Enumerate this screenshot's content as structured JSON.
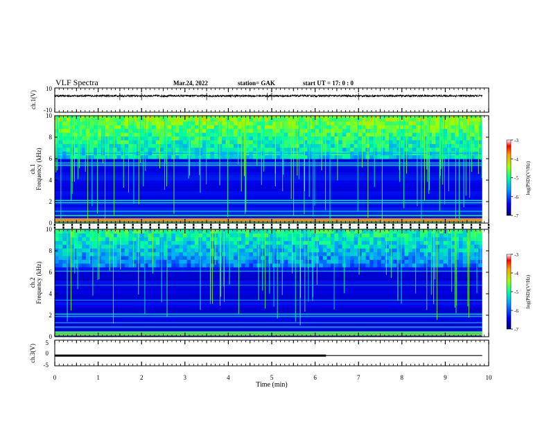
{
  "header": {
    "title": "VLF Spectra",
    "date": "Mar.24, 2022",
    "station": "station= GAK",
    "start_ut": "start  UT =   17: 0  : 0"
  },
  "chart_data": [
    {
      "id": "ch1-waveform",
      "type": "line",
      "ylabel": "ch.1(V)",
      "ylim": [
        -10,
        10
      ],
      "ytick_labels": [
        "10",
        "-10"
      ],
      "xlim": [
        0,
        10
      ],
      "series_color": "#000000",
      "baseline_value": 3.5,
      "noise_amplitude": 0.8,
      "data_end_min": 9.85
    },
    {
      "id": "ch1-spectrogram",
      "type": "heatmap",
      "ylabel": "ch.1\nFrequency  (kHz)",
      "ylim": [
        0,
        10
      ],
      "ytick_labels": [
        "0",
        "2",
        "4",
        "6",
        "8",
        "10"
      ],
      "xlim": [
        0,
        10
      ],
      "colorbar": {
        "label": "log(PSD)(V²/Hz)",
        "range": [
          -7,
          -3
        ],
        "tick_labels": [
          "-3",
          "-4",
          "-5",
          "-6",
          "-7"
        ]
      }
    },
    {
      "id": "ch2-spectrogram",
      "type": "heatmap",
      "ylabel": "ch.2\nFrequency  (kHz)",
      "ylim": [
        0,
        10
      ],
      "ytick_labels": [
        "0",
        "2",
        "4",
        "6",
        "8",
        "10"
      ],
      "xlim": [
        0,
        10
      ],
      "colorbar": {
        "label": "log(PSD)(V²/Hz)",
        "range": [
          -7,
          -3
        ],
        "tick_labels": [
          "-3",
          "-4",
          "-5",
          "-6",
          "-7"
        ]
      }
    },
    {
      "id": "ch3-trace",
      "type": "line",
      "ylabel": "ch.3(V)",
      "ylim": [
        -5,
        5
      ],
      "ytick_labels": [
        "5",
        "0",
        "-5"
      ],
      "xlim": [
        0,
        10
      ],
      "xlabel": "Time  (min)",
      "xtick_labels": [
        "0",
        "1",
        "2",
        "3",
        "4",
        "5",
        "6",
        "7",
        "8",
        "9",
        "10"
      ],
      "x": [
        0,
        9.85
      ],
      "y": [
        -1.0,
        -1.0
      ],
      "thick_segment": {
        "x": [
          0,
          6.25
        ]
      }
    }
  ]
}
